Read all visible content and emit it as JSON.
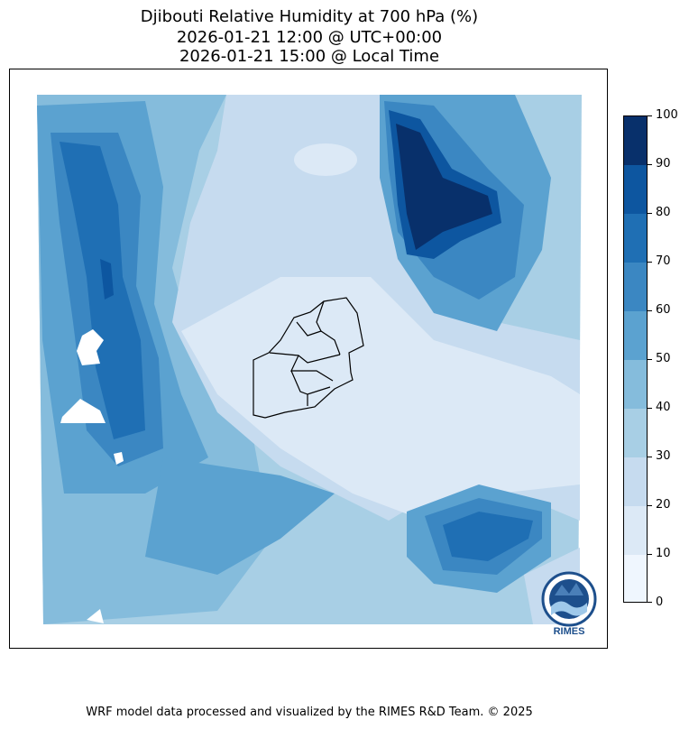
{
  "title": {
    "line1": "Djibouti Relative Humidity at 700 hPa (%)",
    "line2": "2026-01-21 12:00 @ UTC+00:00",
    "line3": "2026-01-21 15:00 @ Local Time"
  },
  "colorbar": {
    "ticks": [
      "100",
      "90",
      "80",
      "70",
      "60",
      "50",
      "40",
      "30",
      "20",
      "10",
      "0"
    ],
    "colors": [
      "#08306b",
      "#0d56a0",
      "#1f6fb4",
      "#3b87c2",
      "#5ba2d0",
      "#85bcdc",
      "#a8cfe5",
      "#c6dbef",
      "#dce9f6",
      "#eff6fe"
    ]
  },
  "logo": {
    "text": "RIMES",
    "ring_color": "#1d4f8c"
  },
  "footer": "WRF model data processed and visualized by the RIMES R&D Team. © 2025"
}
